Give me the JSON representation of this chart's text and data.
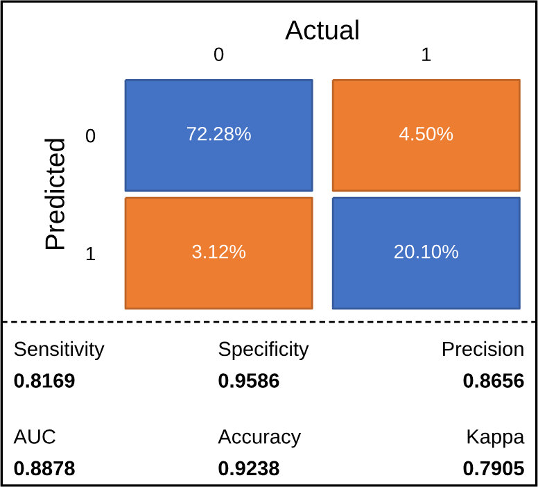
{
  "chart_data": [
    {
      "type": "heatmap",
      "xlabel": "Actual",
      "ylabel": "Predicted",
      "categories": [
        "0",
        "1"
      ],
      "y_categories": [
        "0",
        "1"
      ],
      "cells": [
        [
          72.28,
          4.5
        ],
        [
          3.12,
          20.1
        ]
      ],
      "cell_labels": [
        [
          "72.28%",
          "4.50%"
        ],
        [
          "3.12%",
          "20.10%"
        ]
      ],
      "colors": [
        [
          "#4472c4",
          "#ed7d31"
        ],
        [
          "#ed7d31",
          "#4472c4"
        ]
      ]
    },
    {
      "type": "other",
      "annotations": [
        "Sensitivity",
        "0.8169",
        "Specificity",
        "0.9586",
        "Precision",
        "0.8656",
        "AUC",
        "0.8878",
        "Accuracy",
        "0.9238",
        "Kappa",
        "0.7905"
      ]
    }
  ]
}
